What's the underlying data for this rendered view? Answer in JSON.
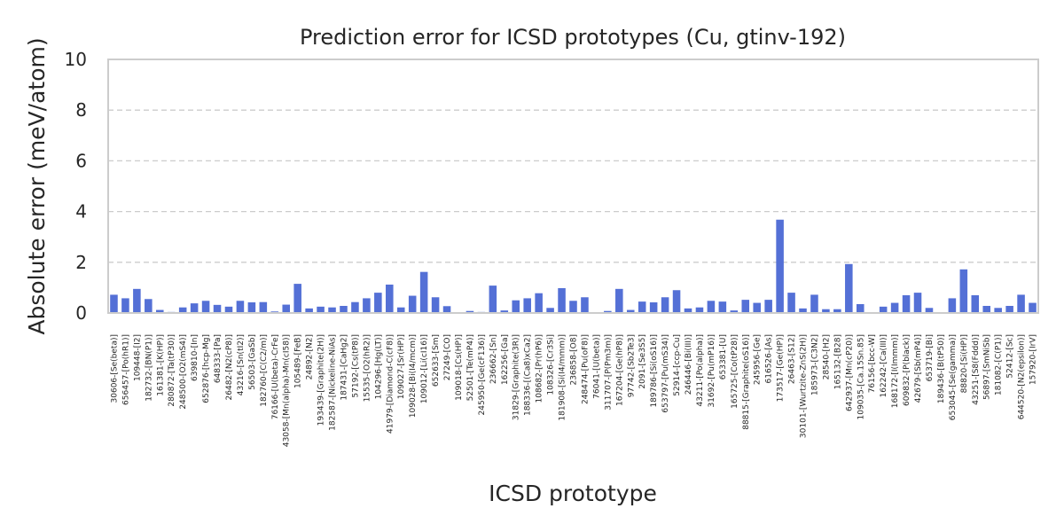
{
  "chart_data": {
    "type": "bar",
    "title": "Prediction error for ICSD prototypes (Cu, gtinv-192)",
    "xlabel": "ICSD prototype",
    "ylabel": "Absolute error (meV/atom)",
    "ylim": [
      0,
      10
    ],
    "yticks": [
      "0",
      "2",
      "4",
      "6",
      "8",
      "10"
    ],
    "grid": true,
    "bar_color": "#5470d6",
    "categories": [
      "30606-[Se(beta)]",
      "656457-[Po(hR1)]",
      "109448-[I2]",
      "182732-[BN(P1)]",
      "161381-[K(HP)]",
      "280872-[Ta(tP30)]",
      "248500-[O2(mS4)]",
      "639810-[In]",
      "652876-[hcp-Mg]",
      "648333-[Pa]",
      "26482-[N2(cP8)]",
      "43216-[Sn(tI2)]",
      "56503-[GaSb]",
      "182760-[C(C2/m)]",
      "76166-[U(beta)-CrFe]",
      "43058-[Mn(alpha)-Mn(cI58)]",
      "105489-[FeB]",
      "24892-[N2]",
      "193439-[Graphite(2H)]",
      "182587-[Nickeline-NiAs]",
      "187431-[CaHg2]",
      "57192-[Cs(tP8)]",
      "15535-[O2(hR2)]",
      "104296-[Hg(LT)]",
      "41979-[Diamond-C(cF8)]",
      "109027-[Sr(HP)]",
      "109028-[Bi(I4/mcm)]",
      "109012-[Li(cI16)]",
      "652633-[Sm]",
      "27249-[CO]",
      "109018-[Cs(HP)]",
      "52501-[Te(mP4)]",
      "245950-[Ge(cF136)]",
      "236662-[Sn]",
      "162256-[Ga]",
      "31829-[Graphite(3R)]",
      "188336-[(Ca8)xCa2]",
      "108682-[Pr(hP6)]",
      "108326-[Cr3Si]",
      "181908-[Si(I4/mmm)]",
      "236858-[O8]",
      "248474-[Pu(oF8)]",
      "76041-[U(beta)]",
      "311707-[P(Pm3m)]",
      "167204-[Ge(hP8)]",
      "97742-[Sb2Te3]",
      "2091-[Se3S5]",
      "189786-[Si(oS16)]",
      "653797-[Pu(mS34)]",
      "52914-[ccp-Cu]",
      "246446-[Bi(III)]",
      "43211-[Po(alpha)]",
      "31692-[Pu(mP16)]",
      "653381-[U]",
      "165725-[Co(tP28)]",
      "88815-[Graphite(oS16)]",
      "245956-[Ge]",
      "616526-[As]",
      "173517-[Ge(HP)]",
      "26463-[S12]",
      "30101-[Wurtzite-ZnS(2H)]",
      "185973-[C3N2]",
      "28540-[H2]",
      "165132-[B28]",
      "642937-[Mn(cP20)]",
      "109035-[Ca.15Sn.85]",
      "76156-[bcc-W]",
      "162242-[Ca(III)]",
      "168172-[I(Immm)]",
      "609832-[P(black)]",
      "42679-[Sb(mP4)]",
      "653719-[Bi]",
      "189436-[B(tP50)]",
      "653045-[Se(gamma)]",
      "88820-[Si(HP)]",
      "43251-[S8(Fddd)]",
      "56897-[SmNiSb]",
      "181082-[C(P1)]",
      "52412-[Sc]",
      "644520-[N2(epsilon)]",
      "157920-[IrV]"
    ],
    "values": [
      0.72,
      0.58,
      0.95,
      0.55,
      0.12,
      0.04,
      0.22,
      0.38,
      0.48,
      0.32,
      0.25,
      0.48,
      0.42,
      0.43,
      0.06,
      0.33,
      1.15,
      0.18,
      0.25,
      0.22,
      0.28,
      0.43,
      0.58,
      0.8,
      1.12,
      0.22,
      0.68,
      1.62,
      0.62,
      0.27,
      0.02,
      0.08,
      0.04,
      1.08,
      0.1,
      0.5,
      0.58,
      0.78,
      0.2,
      0.98,
      0.48,
      0.62,
      0.01,
      0.08,
      0.95,
      0.12,
      0.45,
      0.42,
      0.62,
      0.9,
      0.18,
      0.22,
      0.48,
      0.45,
      0.1,
      0.52,
      0.4,
      0.52,
      3.68,
      0.8,
      0.18,
      0.72,
      0.15,
      0.15,
      1.93,
      0.35,
      0.02,
      0.25,
      0.4,
      0.7,
      0.8,
      0.2,
      0.02,
      0.58,
      1.72,
      0.7,
      0.28,
      0.2,
      0.28,
      0.72,
      0.4
    ]
  }
}
